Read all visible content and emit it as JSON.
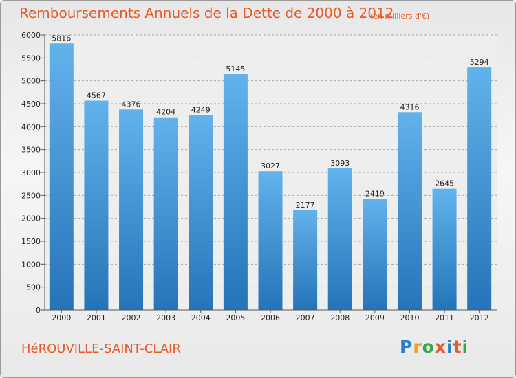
{
  "title": "Remboursements Annuels de la Dette de 2000 à 2012",
  "subtitle": "(en milliers d'€)",
  "commune": "HéROUVILLE-SAINT-CLAIR",
  "logo": {
    "text": "Proxiti",
    "letter_colors": [
      "#2a7fc9",
      "#e8a317",
      "#3aa64b",
      "#e35c2a",
      "#2a7fc9",
      "#e35c2a",
      "#3aa64b"
    ]
  },
  "colors": {
    "title": "#e35c2a",
    "bar_top": "#62b2ec",
    "bar_bottom": "#2574b8",
    "grid": "#a8a8a8",
    "axis": "#555555",
    "plot_background": "#eeeeee"
  },
  "chart_data": {
    "type": "bar",
    "categories": [
      "2000",
      "2001",
      "2002",
      "2003",
      "2004",
      "2005",
      "2006",
      "2007",
      "2008",
      "2009",
      "2010",
      "2011",
      "2012"
    ],
    "values": [
      5816,
      4567,
      4376,
      4204,
      4249,
      5145,
      3027,
      2177,
      3093,
      2419,
      4316,
      2645,
      5294
    ],
    "ylim": [
      0,
      6000
    ],
    "yticks": [
      0,
      500,
      1000,
      1500,
      2000,
      2500,
      3000,
      3500,
      4000,
      4500,
      5000,
      5500,
      6000
    ],
    "grid": "horizontal dashed",
    "data_labels": true,
    "legend": "none"
  }
}
